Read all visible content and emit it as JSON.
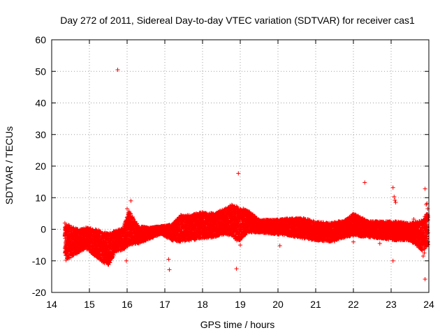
{
  "chart_data": {
    "type": "scatter",
    "title": "Day 272 of 2011, Sidereal Day-to-day VTEC variation (SDTVAR) for receiver cas1",
    "xlabel": "GPS time / hours",
    "ylabel": "SDTVAR / TECUs",
    "xlim": [
      14,
      24
    ],
    "ylim": [
      -20,
      60
    ],
    "x_ticks": [
      14,
      15,
      16,
      17,
      18,
      19,
      20,
      21,
      22,
      23,
      24
    ],
    "y_ticks": [
      -20,
      -10,
      0,
      10,
      20,
      30,
      40,
      50,
      60
    ],
    "grid": true,
    "marker": "+",
    "color": "#ff0000",
    "series": [
      {
        "name": "SDTVAR",
        "band": [
          {
            "x": 14.35,
            "lo": -9.5,
            "hi": 2.0
          },
          {
            "x": 14.5,
            "lo": -9.0,
            "hi": 1.0
          },
          {
            "x": 14.7,
            "lo": -7.5,
            "hi": 0.0
          },
          {
            "x": 14.9,
            "lo": -6.0,
            "hi": 0.5
          },
          {
            "x": 15.1,
            "lo": -8.0,
            "hi": 0.5
          },
          {
            "x": 15.3,
            "lo": -10.0,
            "hi": -0.5
          },
          {
            "x": 15.5,
            "lo": -11.5,
            "hi": -1.0
          },
          {
            "x": 15.7,
            "lo": -7.0,
            "hi": -0.5
          },
          {
            "x": 15.9,
            "lo": -6.5,
            "hi": 0.5
          },
          {
            "x": 16.05,
            "lo": -5.0,
            "hi": 6.0
          },
          {
            "x": 16.3,
            "lo": -4.5,
            "hi": 1.0
          },
          {
            "x": 16.6,
            "lo": -3.0,
            "hi": 0.5
          },
          {
            "x": 16.9,
            "lo": -1.5,
            "hi": 1.0
          },
          {
            "x": 17.2,
            "lo": -3.5,
            "hi": 1.5
          },
          {
            "x": 17.4,
            "lo": -4.0,
            "hi": 4.5
          },
          {
            "x": 17.7,
            "lo": -3.5,
            "hi": 4.5
          },
          {
            "x": 18.0,
            "lo": -3.0,
            "hi": 5.5
          },
          {
            "x": 18.3,
            "lo": -2.5,
            "hi": 5.0
          },
          {
            "x": 18.6,
            "lo": -1.5,
            "hi": 6.5
          },
          {
            "x": 18.75,
            "lo": -2.0,
            "hi": 8.0
          },
          {
            "x": 18.95,
            "lo": -4.0,
            "hi": 7.0
          },
          {
            "x": 19.2,
            "lo": -1.0,
            "hi": 6.0
          },
          {
            "x": 19.5,
            "lo": -1.0,
            "hi": 3.0
          },
          {
            "x": 19.9,
            "lo": -1.5,
            "hi": 3.0
          },
          {
            "x": 20.3,
            "lo": -2.0,
            "hi": 3.5
          },
          {
            "x": 20.7,
            "lo": -3.0,
            "hi": 3.5
          },
          {
            "x": 21.0,
            "lo": -3.5,
            "hi": 2.5
          },
          {
            "x": 21.4,
            "lo": -4.0,
            "hi": 2.0
          },
          {
            "x": 21.8,
            "lo": -2.5,
            "hi": 3.0
          },
          {
            "x": 22.0,
            "lo": -2.0,
            "hi": 5.0
          },
          {
            "x": 22.4,
            "lo": -2.5,
            "hi": 2.5
          },
          {
            "x": 22.8,
            "lo": -3.0,
            "hi": 2.5
          },
          {
            "x": 23.1,
            "lo": -3.5,
            "hi": 2.5
          },
          {
            "x": 23.5,
            "lo": -3.5,
            "hi": 2.0
          },
          {
            "x": 23.85,
            "lo": -7.0,
            "hi": 3.0
          },
          {
            "x": 23.98,
            "lo": -5.0,
            "hi": 6.0
          }
        ],
        "outliers": [
          [
            15.75,
            50.5
          ],
          [
            16.1,
            9.0
          ],
          [
            16.0,
            6.5
          ],
          [
            15.98,
            -10.0
          ],
          [
            17.1,
            -9.5
          ],
          [
            17.12,
            -12.8
          ],
          [
            18.95,
            17.7
          ],
          [
            18.9,
            -12.5
          ],
          [
            20.05,
            -5.2
          ],
          [
            22.3,
            14.8
          ],
          [
            22.0,
            -4.0
          ],
          [
            22.7,
            -4.5
          ],
          [
            23.05,
            13.2
          ],
          [
            23.08,
            10.3
          ],
          [
            23.1,
            9.2
          ],
          [
            23.12,
            8.5
          ],
          [
            23.05,
            -10.0
          ],
          [
            23.9,
            12.8
          ],
          [
            23.95,
            8.2
          ],
          [
            23.97,
            6.5
          ],
          [
            23.93,
            7.8
          ],
          [
            23.88,
            -7.5
          ],
          [
            23.85,
            -8.5
          ],
          [
            23.9,
            -15.8
          ],
          [
            23.6,
            3.2
          ],
          [
            21.5,
            -3.8
          ],
          [
            19.0,
            -5.0
          ],
          [
            14.38,
            -9.8
          ],
          [
            23.98,
            3.8
          ]
        ]
      }
    ]
  }
}
